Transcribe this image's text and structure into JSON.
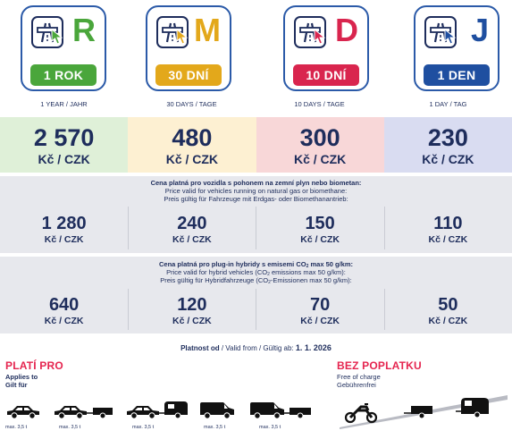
{
  "cards": [
    {
      "letter": "R",
      "badge": "1 ROK",
      "period": "1 YEAR / JAHR",
      "color": "#4aa63b",
      "band": "#dff0d8"
    },
    {
      "letter": "M",
      "badge": "30 DNÍ",
      "period": "30 DAYS / TAGE",
      "color": "#e3a81b",
      "band": "#fdf0d2"
    },
    {
      "letter": "D",
      "badge": "10 DNÍ",
      "period": "10 DAYS / TAGE",
      "color": "#d9254e",
      "band": "#f8d7d8"
    },
    {
      "letter": "J",
      "badge": "1 DEN",
      "period": "1 DAY / TAG",
      "color": "#1f4fa0",
      "band": "#d9dcf1"
    }
  ],
  "standard_prices": [
    {
      "value": "2 570",
      "currency": "Kč / CZK"
    },
    {
      "value": "480",
      "currency": "Kč / CZK"
    },
    {
      "value": "300",
      "currency": "Kč / CZK"
    },
    {
      "value": "230",
      "currency": "Kč / CZK"
    }
  ],
  "gas_section": {
    "heading_cs": "Cena platná pro vozidla s pohonem na zemní plyn nebo biometan:",
    "heading_en": "Price valid for vehicles running on natural gas or biomethane:",
    "heading_de": "Preis gültig für Fahrzeuge mit Erdgas- oder Biomethanantrieb:",
    "prices": [
      {
        "value": "1 280",
        "currency": "Kč / CZK"
      },
      {
        "value": "240",
        "currency": "Kč / CZK"
      },
      {
        "value": "150",
        "currency": "Kč / CZK"
      },
      {
        "value": "110",
        "currency": "Kč / CZK"
      }
    ]
  },
  "hybrid_section": {
    "heading_cs_a": "Cena platná pro plug-in hybridy s emisemi CO",
    "heading_cs_sub": "2",
    "heading_cs_b": " max 50 g/km:",
    "heading_en_a": "Price valid for hybrid vehicles (CO",
    "heading_en_sub": "2",
    "heading_en_b": " emissions max 50 g/km):",
    "heading_de_a": "Preis gültig für Hybridfahrzeuge (CO",
    "heading_de_sub": "2",
    "heading_de_b": "-Emissionen max 50 g/km):",
    "prices": [
      {
        "value": "640",
        "currency": "Kč / CZK"
      },
      {
        "value": "120",
        "currency": "Kč / CZK"
      },
      {
        "value": "70",
        "currency": "Kč / CZK"
      },
      {
        "value": "50",
        "currency": "Kč / CZK"
      }
    ]
  },
  "validity": {
    "label_cs": "Platnost od",
    "label_rest": " / Valid from / Gültig ab: ",
    "date": "1. 1. 2026"
  },
  "applies": {
    "title": "PLATÍ PRO",
    "sub_en": "Applies to",
    "sub_de": "Gilt für",
    "vehicle_labels": [
      "max. 3,5 t",
      "max. 3,5 t",
      "max. 3,5 t",
      "max. 3,5 t",
      "max. 3,5 t"
    ]
  },
  "free": {
    "title": "BEZ POPLATKU",
    "sub_en": "Free of charge",
    "sub_de": "Gebührenfrei"
  },
  "colors": {
    "navy": "#1e2d5c",
    "accent_red": "#e5254f",
    "card_border": "#2b5aa8",
    "grey_band": "#e7e8ed"
  }
}
